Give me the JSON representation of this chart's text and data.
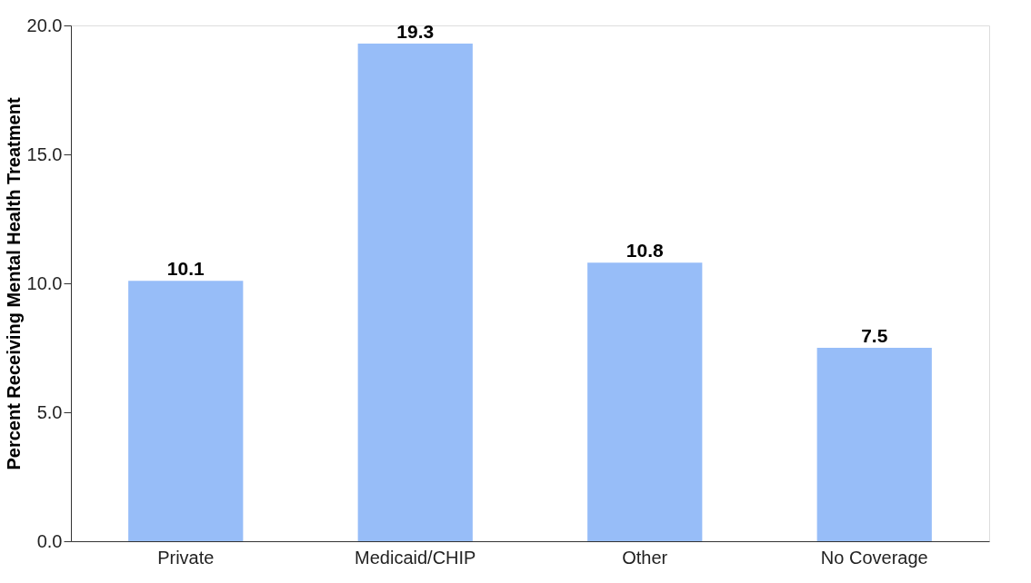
{
  "chart_data": {
    "type": "bar",
    "ylabel": "Percent Receiving Mental Health Treatment",
    "categories": [
      "Private",
      "Medicaid/CHIP",
      "Other",
      "No Coverage"
    ],
    "values": [
      10.1,
      19.3,
      10.8,
      7.5
    ],
    "color": "#97bdf8",
    "ylim": [
      0,
      20
    ],
    "yticks": [
      {
        "value": 0,
        "label": "0.0"
      },
      {
        "value": 5,
        "label": "5.0"
      },
      {
        "value": 10,
        "label": "10.0"
      },
      {
        "value": 15,
        "label": "15.0"
      },
      {
        "value": 20,
        "label": "20.0"
      }
    ],
    "grid": false,
    "data_labels": true
  }
}
